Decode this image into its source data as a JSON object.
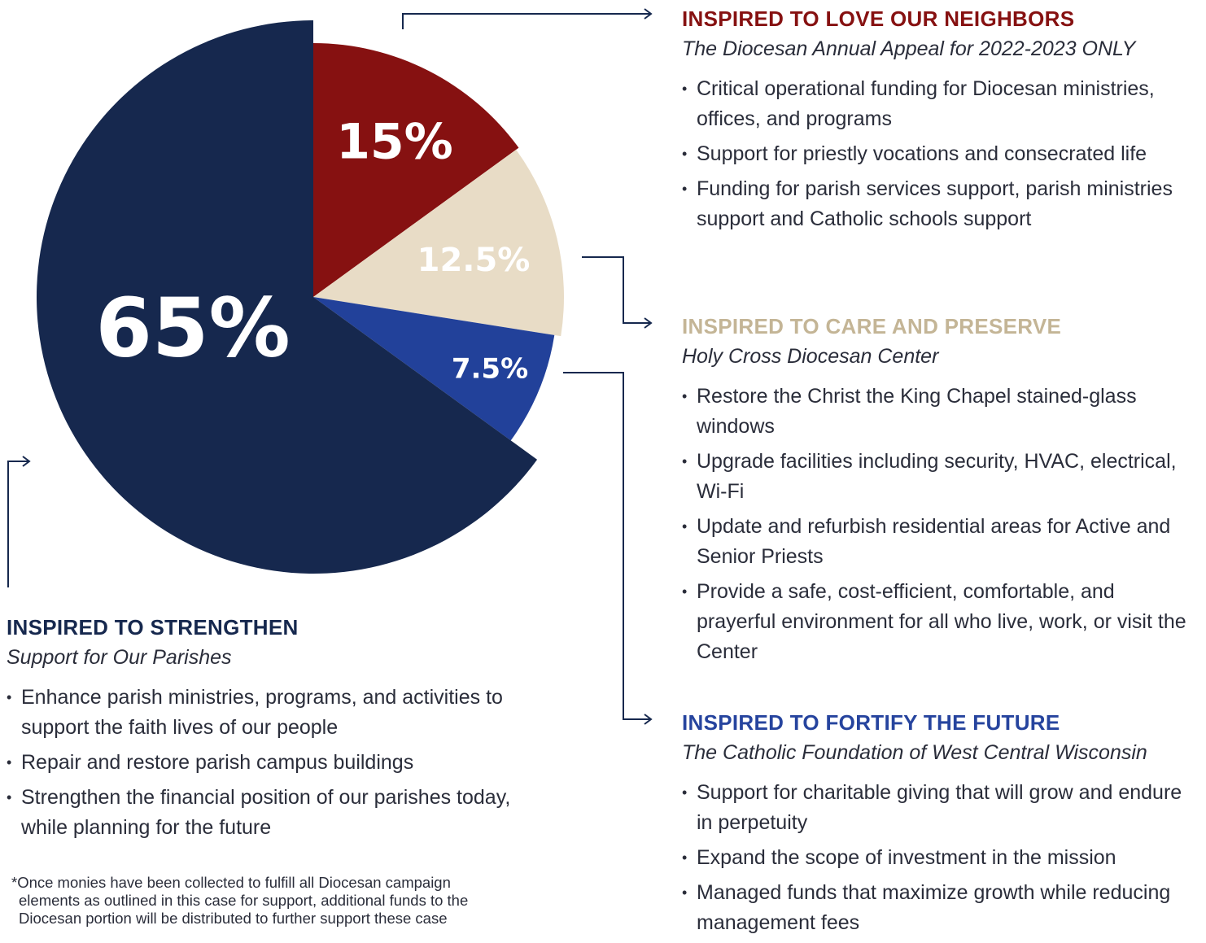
{
  "chart_data": {
    "type": "pie",
    "values": [
      15,
      12.5,
      7.5,
      65
    ],
    "value_labels": [
      "15%",
      "12.5%",
      "7.5%",
      "65%"
    ],
    "colors": [
      "#861111",
      "#e8dcc6",
      "#22419a",
      "#16284e"
    ]
  },
  "sections": [
    {
      "title": "INSPIRED TO LOVE OUR NEIGHBORS",
      "subtitle": "The Diocesan Annual Appeal for 2022-2023 ONLY",
      "color": "#861111",
      "bullets": [
        "Critical operational funding for Diocesan ministries, offices, and programs",
        "Support for priestly vocations and consecrated life",
        "Funding for parish services support, parish ministries support and Catholic schools support"
      ]
    },
    {
      "title": "INSPIRED TO CARE AND PRESERVE",
      "subtitle": "Holy Cross Diocesan Center",
      "color": "#c4b596",
      "bullets": [
        "Restore the Christ the King Chapel stained-glass windows",
        "Upgrade facilities including security, HVAC, electrical, Wi-Fi",
        "Update and refurbish residential areas for Active and Senior Priests",
        "Provide a safe, cost-efficient, comfortable, and prayerful environment for all who live, work, or visit the Center"
      ]
    },
    {
      "title": "INSPIRED TO FORTIFY THE FUTURE",
      "subtitle": "The Catholic Foundation of West Central Wisconsin",
      "color": "#26449e",
      "bullets": [
        "Support for charitable giving that will grow and endure in perpetuity",
        "Expand the scope of investment in the mission",
        "Managed funds that maximize growth while reducing management fees"
      ]
    },
    {
      "title": "INSPIRED TO STRENGTHEN",
      "subtitle": "Support for Our Parishes",
      "color": "#16284e",
      "bullets": [
        "Enhance parish ministries, programs, and activities to support the faith lives of our people",
        "Repair and restore parish campus buildings",
        "Strengthen the financial position of our parishes today, while planning for the future"
      ]
    }
  ],
  "footnote": [
    "*Once monies have been collected to fulfill all Diocesan campaign",
    "elements as outlined in this case for support, additional funds to the",
    "Diocesan portion will be distributed to further support these case"
  ]
}
